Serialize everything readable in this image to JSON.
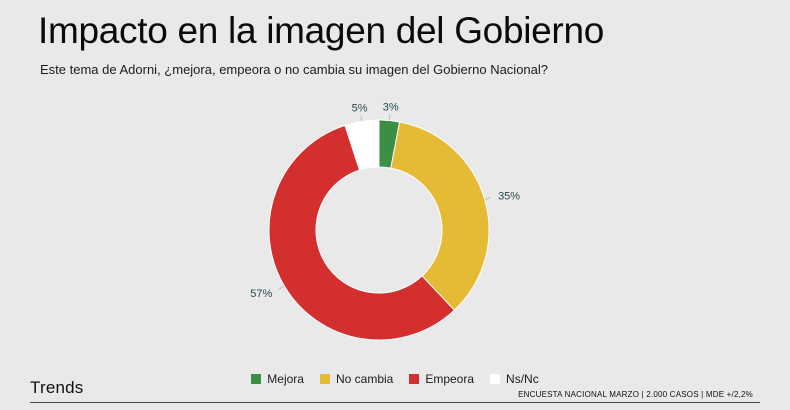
{
  "header": {
    "title": "Impacto en la imagen del Gobierno",
    "subtitle": "Este tema de Adorni, ¿mejora, empeora o no cambia su imagen del Gobierno Nacional?"
  },
  "footer": {
    "brand": "Trends",
    "note": "ENCUESTA NACIONAL MARZO | 2.000 CASOS | MDE +/2,2%"
  },
  "chart_data": {
    "type": "pie",
    "donut": true,
    "title": "Impacto en la imagen del Gobierno",
    "subtitle": "Este tema de Adorni, ¿mejora, empeora o no cambia su imagen del Gobierno Nacional?",
    "categories": [
      "Mejora",
      "No cambia",
      "Empeora",
      "Ns/Nc"
    ],
    "values": [
      3,
      35,
      57,
      5
    ],
    "data_labels": [
      "3%",
      "35%",
      "57%",
      "5%"
    ],
    "colors": [
      "#3a8f45",
      "#e5ba35",
      "#d42f2f",
      "#ffffff"
    ],
    "legend_position": "bottom"
  }
}
